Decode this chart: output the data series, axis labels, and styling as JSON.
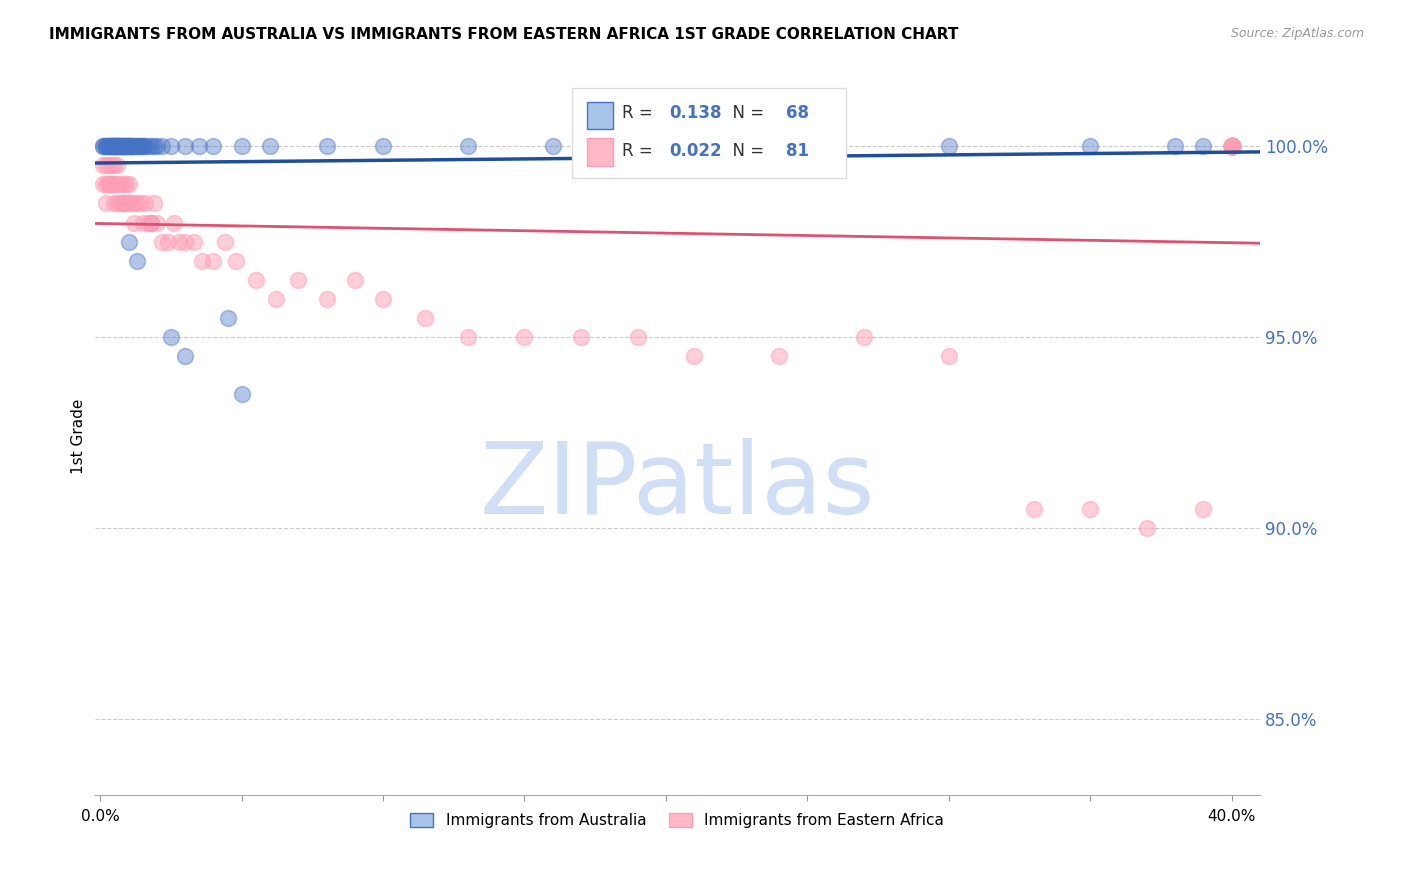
{
  "title": "IMMIGRANTS FROM AUSTRALIA VS IMMIGRANTS FROM EASTERN AFRICA 1ST GRADE CORRELATION CHART",
  "source": "Source: ZipAtlas.com",
  "ylabel": "1st Grade",
  "yticks": [
    85.0,
    90.0,
    95.0,
    100.0
  ],
  "ytick_labels": [
    "85.0%",
    "90.0%",
    "95.0%",
    "100.0%"
  ],
  "ylim": [
    83.0,
    101.8
  ],
  "xlim": [
    -0.002,
    0.41
  ],
  "legend_r1_val": "0.138",
  "legend_n1_val": "68",
  "legend_r2_val": "0.022",
  "legend_n2_val": "81",
  "blue_color": "#4472C4",
  "pink_color": "#FF9EB5",
  "trendline_blue": "#1F4E9B",
  "trendline_pink": "#E05070",
  "watermark_text": "ZIPatlas",
  "watermark_color": "#D0DFF5",
  "blue_scatter_x": [
    0.001,
    0.001,
    0.002,
    0.002,
    0.002,
    0.003,
    0.003,
    0.003,
    0.003,
    0.004,
    0.004,
    0.004,
    0.005,
    0.005,
    0.005,
    0.005,
    0.005,
    0.006,
    0.006,
    0.006,
    0.006,
    0.007,
    0.007,
    0.007,
    0.007,
    0.008,
    0.008,
    0.008,
    0.008,
    0.009,
    0.009,
    0.009,
    0.01,
    0.01,
    0.01,
    0.011,
    0.011,
    0.011,
    0.012,
    0.012,
    0.013,
    0.013,
    0.014,
    0.014,
    0.015,
    0.015,
    0.016,
    0.017,
    0.018,
    0.019,
    0.02,
    0.022,
    0.025,
    0.03,
    0.035,
    0.04,
    0.05,
    0.06,
    0.08,
    0.1,
    0.13,
    0.16,
    0.22,
    0.3,
    0.35,
    0.38,
    0.39,
    0.4
  ],
  "blue_scatter_y": [
    100.0,
    100.0,
    100.0,
    100.0,
    100.0,
    100.0,
    100.0,
    100.0,
    100.0,
    100.0,
    100.0,
    100.0,
    100.0,
    100.0,
    100.0,
    100.0,
    100.0,
    100.0,
    100.0,
    100.0,
    100.0,
    100.0,
    100.0,
    100.0,
    100.0,
    100.0,
    100.0,
    100.0,
    100.0,
    100.0,
    100.0,
    100.0,
    100.0,
    100.0,
    100.0,
    100.0,
    100.0,
    100.0,
    100.0,
    100.0,
    100.0,
    100.0,
    100.0,
    100.0,
    100.0,
    100.0,
    100.0,
    100.0,
    100.0,
    100.0,
    100.0,
    100.0,
    100.0,
    100.0,
    100.0,
    100.0,
    100.0,
    100.0,
    100.0,
    100.0,
    100.0,
    100.0,
    100.0,
    100.0,
    100.0,
    100.0,
    100.0,
    100.0
  ],
  "blue_outlier_x": [
    0.003,
    0.008,
    0.01,
    0.013,
    0.018,
    0.025,
    0.03,
    0.045,
    0.05
  ],
  "blue_outlier_y": [
    99.0,
    98.5,
    97.5,
    97.0,
    98.0,
    95.0,
    94.5,
    95.5,
    93.5
  ],
  "pink_scatter_x": [
    0.001,
    0.001,
    0.002,
    0.002,
    0.002,
    0.003,
    0.003,
    0.003,
    0.004,
    0.004,
    0.004,
    0.005,
    0.005,
    0.005,
    0.006,
    0.006,
    0.006,
    0.007,
    0.007,
    0.008,
    0.008,
    0.009,
    0.009,
    0.01,
    0.01,
    0.011,
    0.012,
    0.012,
    0.013,
    0.014,
    0.015,
    0.016,
    0.017,
    0.018,
    0.019,
    0.02,
    0.022,
    0.024,
    0.026,
    0.028,
    0.03,
    0.033,
    0.036,
    0.04,
    0.044,
    0.048,
    0.055,
    0.062,
    0.07,
    0.08,
    0.09,
    0.1,
    0.115,
    0.13,
    0.15,
    0.17,
    0.19,
    0.21,
    0.24,
    0.27,
    0.3,
    0.33,
    0.35,
    0.37,
    0.39,
    0.4,
    0.4,
    0.4,
    0.4,
    0.4,
    0.4,
    0.4,
    0.4,
    0.4,
    0.4,
    0.4,
    0.4,
    0.4,
    0.4,
    0.4,
    0.4
  ],
  "pink_scatter_y": [
    99.5,
    99.0,
    99.5,
    99.0,
    98.5,
    99.5,
    99.0,
    99.0,
    99.5,
    99.0,
    99.0,
    99.5,
    99.0,
    98.5,
    99.5,
    99.0,
    98.5,
    99.0,
    98.5,
    99.0,
    98.5,
    99.0,
    98.5,
    99.0,
    98.5,
    98.5,
    98.5,
    98.0,
    98.5,
    98.5,
    98.0,
    98.5,
    98.0,
    98.0,
    98.5,
    98.0,
    97.5,
    97.5,
    98.0,
    97.5,
    97.5,
    97.5,
    97.0,
    97.0,
    97.5,
    97.0,
    96.5,
    96.0,
    96.5,
    96.0,
    96.5,
    96.0,
    95.5,
    95.0,
    95.0,
    95.0,
    95.0,
    94.5,
    94.5,
    95.0,
    94.5,
    90.5,
    90.5,
    90.0,
    90.5,
    100.0,
    100.0,
    100.0,
    100.0,
    100.0,
    100.0,
    100.0,
    100.0,
    100.0,
    100.0,
    100.0,
    100.0,
    100.0,
    100.0,
    100.0,
    100.0
  ]
}
